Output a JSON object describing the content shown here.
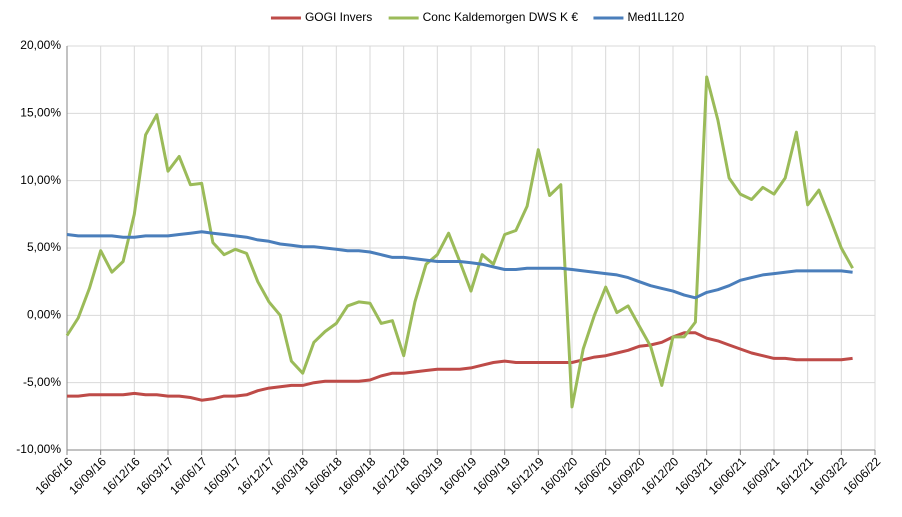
{
  "chart_data": {
    "type": "line",
    "x": [
      "16/06/16",
      "16/07/16",
      "16/08/16",
      "16/09/16",
      "16/10/16",
      "16/11/16",
      "16/12/16",
      "16/01/17",
      "16/02/17",
      "16/03/17",
      "16/04/17",
      "16/05/17",
      "16/06/17",
      "16/07/17",
      "16/08/17",
      "16/09/17",
      "16/10/17",
      "16/11/17",
      "16/12/17",
      "16/01/18",
      "16/02/18",
      "16/03/18",
      "16/04/18",
      "16/05/18",
      "16/06/18",
      "16/07/18",
      "16/08/18",
      "16/09/18",
      "16/10/18",
      "16/11/18",
      "16/12/18",
      "16/01/19",
      "16/02/19",
      "16/03/19",
      "16/04/19",
      "16/05/19",
      "16/06/19",
      "16/07/19",
      "16/08/19",
      "16/09/19",
      "16/10/19",
      "16/11/19",
      "16/12/19",
      "16/01/20",
      "16/02/20",
      "16/03/20",
      "16/04/20",
      "16/05/20",
      "16/06/20",
      "16/07/20",
      "16/08/20",
      "16/09/20",
      "16/10/20",
      "16/11/20",
      "16/12/20",
      "16/01/21",
      "16/02/21",
      "16/03/21",
      "16/04/21",
      "16/05/21",
      "16/06/21",
      "16/07/21",
      "16/08/21",
      "16/09/21",
      "16/10/21",
      "16/11/21",
      "16/12/21",
      "16/01/22",
      "16/02/22",
      "16/03/22",
      "16/04/22"
    ],
    "series": [
      {
        "name": "GOGI Invers",
        "color": "#be4b48",
        "values": [
          -6.0,
          -6.0,
          -5.9,
          -5.9,
          -5.9,
          -5.9,
          -5.8,
          -5.9,
          -5.9,
          -6.0,
          -6.0,
          -6.1,
          -6.3,
          -6.2,
          -6.0,
          -6.0,
          -5.9,
          -5.6,
          -5.4,
          -5.3,
          -5.2,
          -5.2,
          -5.0,
          -4.9,
          -4.9,
          -4.9,
          -4.9,
          -4.8,
          -4.5,
          -4.3,
          -4.3,
          -4.2,
          -4.1,
          -4.0,
          -4.0,
          -4.0,
          -3.9,
          -3.7,
          -3.5,
          -3.4,
          -3.5,
          -3.5,
          -3.5,
          -3.5,
          -3.5,
          -3.5,
          -3.3,
          -3.1,
          -3.0,
          -2.8,
          -2.6,
          -2.3,
          -2.2,
          -2.0,
          -1.6,
          -1.3,
          -1.3,
          -1.7,
          -1.9,
          -2.2,
          -2.5,
          -2.8,
          -3.0,
          -3.2,
          -3.2,
          -3.3,
          -3.3,
          -3.3,
          -3.3,
          -3.3,
          -3.2
        ]
      },
      {
        "name": "Conc Kaldemorgen DWS K €",
        "color": "#9bbb59",
        "values": [
          -1.5,
          -0.2,
          2.0,
          4.8,
          3.2,
          4.0,
          7.5,
          13.4,
          14.9,
          10.7,
          11.8,
          9.7,
          9.8,
          5.4,
          4.5,
          4.9,
          4.6,
          2.5,
          1.0,
          0.0,
          -3.4,
          -4.3,
          -2.0,
          -1.2,
          -0.6,
          0.7,
          1.0,
          0.9,
          -0.6,
          -0.4,
          -3.0,
          1.0,
          3.8,
          4.5,
          6.1,
          4.0,
          1.8,
          4.5,
          3.8,
          6.0,
          6.3,
          8.1,
          12.3,
          8.9,
          9.7,
          -6.8,
          -2.5,
          0.0,
          2.1,
          0.2,
          0.7,
          -0.8,
          -2.3,
          -5.2,
          -1.6,
          -1.6,
          -0.5,
          17.7,
          14.5,
          10.2,
          9.0,
          8.6,
          9.5,
          9.0,
          10.2,
          13.6,
          8.2,
          9.3,
          7.2,
          5.0,
          3.5
        ]
      },
      {
        "name": "Med1L120",
        "color": "#4a7ebb",
        "values": [
          6.0,
          5.9,
          5.9,
          5.9,
          5.9,
          5.8,
          5.8,
          5.9,
          5.9,
          5.9,
          6.0,
          6.1,
          6.2,
          6.1,
          6.0,
          5.9,
          5.8,
          5.6,
          5.5,
          5.3,
          5.2,
          5.1,
          5.1,
          5.0,
          4.9,
          4.8,
          4.8,
          4.7,
          4.5,
          4.3,
          4.3,
          4.2,
          4.1,
          4.0,
          4.0,
          4.0,
          3.9,
          3.8,
          3.6,
          3.4,
          3.4,
          3.5,
          3.5,
          3.5,
          3.5,
          3.4,
          3.3,
          3.2,
          3.1,
          3.0,
          2.8,
          2.5,
          2.2,
          2.0,
          1.8,
          1.5,
          1.3,
          1.7,
          1.9,
          2.2,
          2.6,
          2.8,
          3.0,
          3.1,
          3.2,
          3.3,
          3.3,
          3.3,
          3.3,
          3.3,
          3.2
        ]
      }
    ],
    "xlim": [
      "16/06/16",
      "16/06/22"
    ],
    "xticks": [
      "16/06/16",
      "16/09/16",
      "16/12/16",
      "16/03/17",
      "16/06/17",
      "16/09/17",
      "16/12/17",
      "16/03/18",
      "16/06/18",
      "16/09/18",
      "16/12/18",
      "16/03/19",
      "16/06/19",
      "16/09/19",
      "16/12/19",
      "16/03/20",
      "16/06/20",
      "16/09/20",
      "16/12/20",
      "16/03/21",
      "16/06/21",
      "16/09/21",
      "16/12/21",
      "16/03/22",
      "16/06/22"
    ],
    "ylim": [
      -10,
      20
    ],
    "yticks": [
      {
        "value": -10,
        "label": "-10,00%"
      },
      {
        "value": -5,
        "label": "-5,00%"
      },
      {
        "value": 0,
        "label": "0,00%"
      },
      {
        "value": 5,
        "label": "5,00%"
      },
      {
        "value": 10,
        "label": "10,00%"
      },
      {
        "value": 15,
        "label": "15,00%"
      },
      {
        "value": 20,
        "label": "20,00%"
      }
    ],
    "grid": true,
    "legend": "top"
  }
}
